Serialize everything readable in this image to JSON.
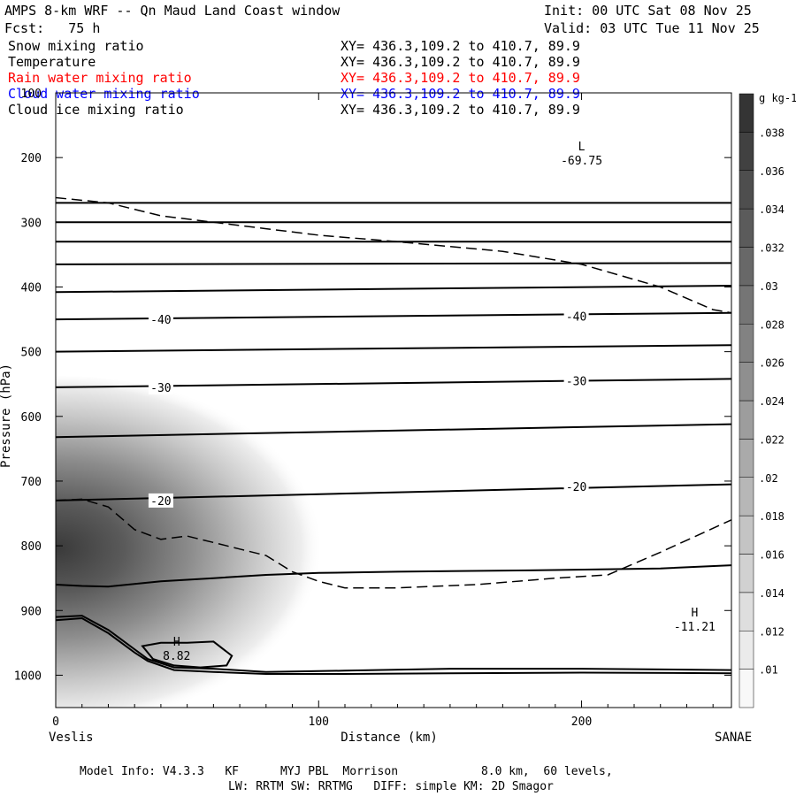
{
  "header": {
    "title": "AMPS 8-km WRF -- Qn Maud Land Coast window",
    "init": "Init: 00 UTC Sat 08 Nov 25",
    "fcst": "Fcst:   75 h",
    "valid": "Valid: 03 UTC Tue 11 Nov 25"
  },
  "legend_rows": [
    {
      "name": "Snow mixing ratio",
      "xy": "XY= 436.3,109.2 to 410.7, 89.9",
      "color": "#000000"
    },
    {
      "name": "Temperature",
      "xy": "XY= 436.3,109.2 to 410.7, 89.9",
      "color": "#000000"
    },
    {
      "name": "Rain water mixing ratio",
      "xy": "XY= 436.3,109.2 to 410.7, 89.9",
      "color": "#ff0000"
    },
    {
      "name": "Cloud water mixing ratio",
      "xy": "XY= 436.3,109.2 to 410.7, 89.9",
      "color": "#0000ff"
    },
    {
      "name": "Cloud ice mixing ratio",
      "xy": "XY= 436.3,109.2 to 410.7, 89.9",
      "color": "#000000"
    }
  ],
  "chart_data": {
    "type": "cross-section",
    "ylabel": "Pressure (hPa)",
    "xlabel": "Distance (km)",
    "xlim": [
      0,
      257
    ],
    "ylim": [
      1050,
      100
    ],
    "x_ticks": [
      {
        "v": 0,
        "l": "0"
      },
      {
        "v": 100,
        "l": "100"
      },
      {
        "v": 200,
        "l": "200"
      }
    ],
    "y_ticks": [
      {
        "v": 100,
        "l": "100"
      },
      {
        "v": 200,
        "l": "200"
      },
      {
        "v": 300,
        "l": "300"
      },
      {
        "v": 400,
        "l": "400"
      },
      {
        "v": 500,
        "l": "500"
      },
      {
        "v": 600,
        "l": "600"
      },
      {
        "v": 700,
        "l": "700"
      },
      {
        "v": 800,
        "l": "800"
      },
      {
        "v": 900,
        "l": "900"
      },
      {
        "v": 1000,
        "l": "1000"
      }
    ],
    "left_label": "Veslis",
    "right_label": "SANAE",
    "temperature_contours": [
      {
        "x": [
          0,
          257
        ],
        "p": [
          270,
          270
        ]
      },
      {
        "x": [
          0,
          257
        ],
        "p": [
          300,
          300
        ]
      },
      {
        "x": [
          0,
          257
        ],
        "p": [
          330,
          330
        ]
      },
      {
        "x": [
          0,
          257
        ],
        "p": [
          365,
          363
        ]
      },
      {
        "x": [
          0,
          257
        ],
        "p": [
          408,
          398
        ]
      },
      {
        "x": [
          0,
          257
        ],
        "p": [
          450,
          440
        ]
      },
      {
        "x": [
          0,
          257
        ],
        "p": [
          500,
          490
        ]
      },
      {
        "x": [
          0,
          257
        ],
        "p": [
          555,
          542
        ]
      },
      {
        "x": [
          0,
          257
        ],
        "p": [
          632,
          612
        ]
      },
      {
        "x": [
          0,
          257
        ],
        "p": [
          730,
          705
        ]
      },
      {
        "x": [
          0,
          10,
          20,
          40,
          60,
          80,
          100,
          130,
          180,
          230,
          257
        ],
        "p": [
          860,
          862,
          863,
          855,
          850,
          845,
          842,
          840,
          838,
          835,
          830
        ]
      },
      {
        "x": [
          0,
          10,
          20,
          30,
          35,
          45,
          60,
          80,
          110,
          150,
          200,
          257
        ],
        "p": [
          910,
          908,
          930,
          960,
          975,
          988,
          990,
          995,
          993,
          990,
          990,
          992
        ]
      },
      {
        "x": [
          0,
          10,
          20,
          30,
          35,
          45,
          60,
          80,
          110,
          150,
          200,
          257
        ],
        "p": [
          915,
          912,
          935,
          965,
          978,
          992,
          995,
          998,
          998,
          997,
          996,
          997
        ]
      }
    ],
    "temperature_labels": [
      {
        "x": 40,
        "p": 450,
        "text": "-40"
      },
      {
        "x": 198,
        "p": 445,
        "text": "-40"
      },
      {
        "x": 40,
        "p": 555,
        "text": "-30"
      },
      {
        "x": 198,
        "p": 545,
        "text": "-30"
      },
      {
        "x": 40,
        "p": 730,
        "text": "-20"
      },
      {
        "x": 198,
        "p": 708,
        "text": "-20"
      }
    ],
    "dashed_contours": [
      {
        "x": [
          0,
          20,
          40,
          60,
          80,
          100,
          130,
          170,
          200,
          230,
          250,
          257
        ],
        "p": [
          262,
          270,
          290,
          300,
          310,
          320,
          330,
          345,
          365,
          400,
          435,
          440
        ]
      },
      {
        "x": [
          0,
          10,
          20,
          30,
          40,
          50,
          60,
          70,
          80,
          90,
          100,
          110,
          130,
          160,
          190,
          210,
          230,
          257
        ],
        "p": [
          730,
          728,
          740,
          775,
          790,
          785,
          795,
          805,
          815,
          840,
          855,
          865,
          865,
          860,
          850,
          845,
          810,
          760
        ]
      }
    ],
    "closed_contour": {
      "x": [
        33,
        40,
        50,
        60,
        67,
        65,
        55,
        45,
        37,
        33
      ],
      "p": [
        955,
        950,
        950,
        948,
        970,
        985,
        988,
        985,
        975,
        955
      ]
    },
    "extrema": [
      {
        "kind": "L",
        "x": 200,
        "p": 200,
        "value": "-69.75"
      },
      {
        "kind": "H",
        "x": 243,
        "p": 920,
        "value": "-11.21"
      },
      {
        "kind": "H",
        "x": 46,
        "p": 965,
        "value": "8.82"
      }
    ],
    "snow_field": {
      "center_x": 0,
      "center_p": 830,
      "rx_km": 105,
      "rp_hpa": 255,
      "max": 0.039
    },
    "colorbar": {
      "unit": "g kg-1",
      "labels": [
        ".01",
        ".012",
        ".014",
        ".016",
        ".018",
        ".02",
        ".022",
        ".024",
        ".026",
        ".028",
        ".03",
        ".032",
        ".034",
        ".036",
        ".038"
      ],
      "levels": 16
    }
  },
  "footer": {
    "line1": "Model Info: V4.3.3   KF      MYJ PBL  Morrison            8.0 km,  60 levels,",
    "line2": "LW: RRTM SW: RRTMG   DIFF: simple KM: 2D Smagor"
  }
}
